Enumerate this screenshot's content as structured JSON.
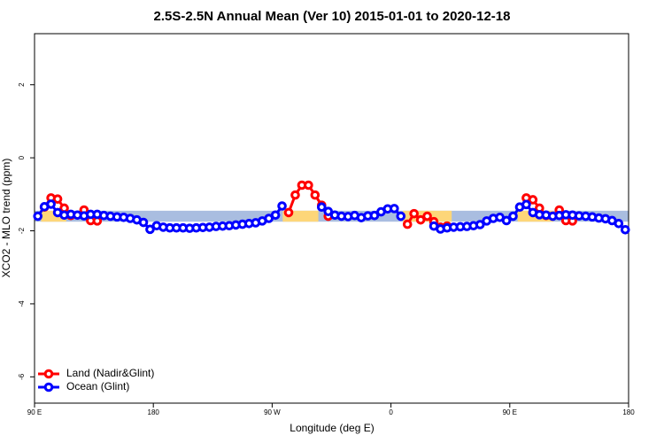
{
  "chart_data": {
    "type": "line",
    "title": "2.5S-2.5N Annual Mean (Ver 10)   2015-01-01 to 2020-12-18",
    "x_label": "Longitude (deg E)",
    "y_label": "XCO2 - MLO trend (ppm)",
    "xlim": [
      90,
      540
    ],
    "ylim": [
      -6.72,
      3.4
    ],
    "xticks": [
      {
        "value": 90,
        "label": "90 E"
      },
      180,
      {
        "value": 270,
        "label": "90 W"
      },
      {
        "value": 360,
        "label": "0"
      },
      {
        "value": 450,
        "label": "90 E"
      },
      {
        "value": 540,
        "label": "180"
      }
    ],
    "yticks": [
      -6,
      -4,
      -2,
      0,
      2
    ],
    "legend": "bottom-left",
    "bands": [
      {
        "color": "#a9bde0",
        "x": [
          90,
          540
        ],
        "y": [
          -1.75,
          -1.45
        ]
      },
      {
        "color": "#fdd679",
        "x": [
          95,
          114
        ],
        "y": [
          -1.75,
          -1.45
        ]
      },
      {
        "color": "#fdd679",
        "x": [
          278,
          305
        ],
        "y": [
          -1.75,
          -1.45
        ]
      },
      {
        "color": "#fdd679",
        "x": [
          369,
          406
        ],
        "y": [
          -1.75,
          -1.45
        ]
      },
      {
        "color": "#fdd679",
        "x": [
          456,
          483
        ],
        "y": [
          -1.75,
          -1.45
        ]
      }
    ],
    "x": [
      92.5,
      97.5,
      102.5,
      107.5,
      112.5,
      117.5,
      122.5,
      127.5,
      132.5,
      137.5,
      142.5,
      147.5,
      152.5,
      157.5,
      162.5,
      167.5,
      172.5,
      177.5,
      182.5,
      187.5,
      192.5,
      197.5,
      202.5,
      207.5,
      212.5,
      217.5,
      222.5,
      227.5,
      232.5,
      237.5,
      242.5,
      247.5,
      252.5,
      257.5,
      262.5,
      267.5,
      272.5,
      277.5,
      282.5,
      287.5,
      292.5,
      297.5,
      302.5,
      307.5,
      312.5,
      317.5,
      322.5,
      327.5,
      332.5,
      337.5,
      342.5,
      347.5,
      352.5,
      357.5,
      362.5,
      367.5,
      372.5,
      377.5,
      382.5,
      387.5,
      392.5,
      397.5,
      402.5,
      407.5,
      412.5,
      417.5,
      422.5,
      427.5,
      432.5,
      437.5,
      442.5,
      447.5,
      452.5,
      457.5,
      462.5,
      467.5,
      472.5,
      477.5,
      482.5,
      487.5,
      492.5,
      497.5,
      502.5,
      507.5,
      512.5,
      517.5,
      522.5,
      527.5,
      532.5,
      537.5
    ],
    "series": [
      {
        "name": "Land (Nadir&Glint)",
        "color": "#ff0000",
        "values": [
          null,
          -1.35,
          -1.1,
          -1.13,
          -1.38,
          -1.58,
          null,
          -1.43,
          -1.72,
          -1.73,
          null,
          null,
          null,
          null,
          null,
          null,
          null,
          null,
          null,
          null,
          null,
          null,
          null,
          null,
          null,
          null,
          null,
          null,
          null,
          null,
          null,
          null,
          null,
          null,
          null,
          null,
          null,
          null,
          -1.5,
          -1.02,
          -0.75,
          -0.75,
          -1.02,
          -1.3,
          -1.6,
          null,
          null,
          null,
          null,
          null,
          null,
          null,
          null,
          null,
          null,
          null,
          -1.82,
          -1.53,
          -1.7,
          -1.6,
          -1.75,
          -1.9,
          -1.87,
          null,
          null,
          null,
          null,
          null,
          null,
          null,
          null,
          null,
          null,
          null,
          -1.1,
          -1.15,
          -1.38,
          -1.58,
          null,
          -1.43,
          -1.72,
          -1.73,
          null,
          null,
          null,
          null,
          null,
          null,
          null,
          null
        ]
      },
      {
        "name": "Ocean (Glint)",
        "color": "#0000ff",
        "values": [
          -1.6,
          -1.34,
          -1.27,
          -1.5,
          -1.57,
          -1.55,
          -1.57,
          -1.59,
          -1.55,
          -1.55,
          -1.58,
          -1.6,
          -1.62,
          -1.63,
          -1.66,
          -1.7,
          -1.77,
          -1.96,
          -1.86,
          -1.9,
          -1.92,
          -1.92,
          -1.92,
          -1.93,
          -1.92,
          -1.91,
          -1.9,
          -1.88,
          -1.87,
          -1.86,
          -1.84,
          -1.82,
          -1.8,
          -1.78,
          -1.73,
          -1.66,
          -1.57,
          -1.32,
          null,
          null,
          null,
          null,
          null,
          -1.35,
          -1.47,
          -1.57,
          -1.6,
          -1.61,
          -1.58,
          -1.64,
          -1.59,
          -1.58,
          -1.48,
          -1.4,
          -1.39,
          -1.6,
          null,
          null,
          null,
          null,
          -1.87,
          -1.95,
          -1.92,
          -1.9,
          -1.89,
          -1.88,
          -1.86,
          -1.83,
          -1.73,
          -1.66,
          -1.63,
          -1.72,
          -1.6,
          -1.35,
          -1.28,
          -1.5,
          -1.56,
          -1.57,
          -1.6,
          -1.58,
          -1.56,
          -1.57,
          -1.59,
          -1.6,
          -1.62,
          -1.65,
          -1.67,
          -1.72,
          -1.8,
          -1.97
        ]
      }
    ]
  }
}
